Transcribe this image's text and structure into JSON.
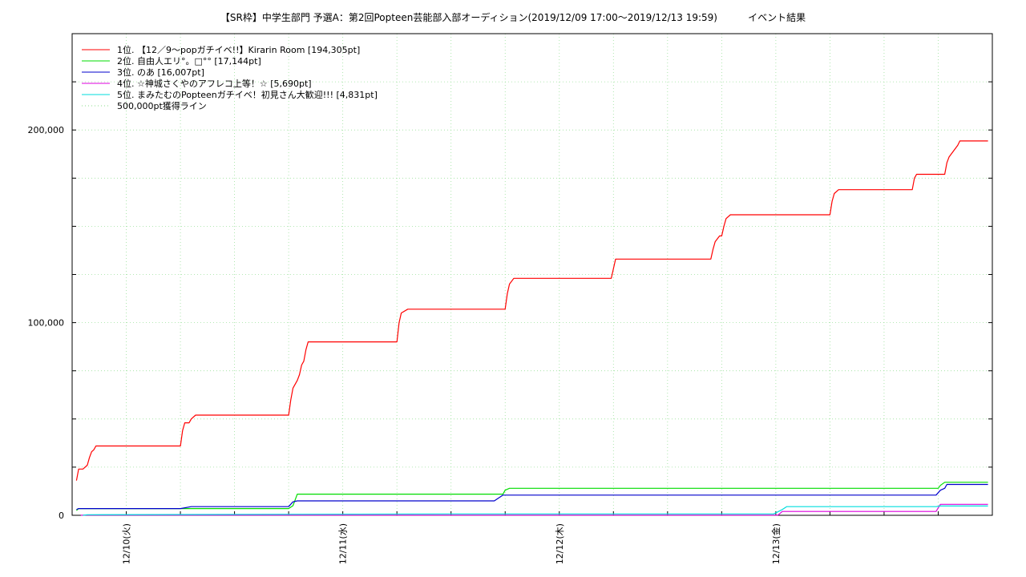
{
  "chart_data": {
    "type": "line",
    "title": "【SR枠】中学生部門 予選A：第2回Popteen芸能部入部オーディション(2019/12/09 17:00〜2019/12/13 19:59)          イベント結果",
    "xlabel": "",
    "ylabel": "",
    "ylim": [
      0,
      250000
    ],
    "y_ticks": [
      {
        "value": 0,
        "label": "0"
      },
      {
        "value": 100000,
        "label": "100,000"
      },
      {
        "value": 200000,
        "label": "200,000"
      }
    ],
    "x_ticks": [
      {
        "x": 1,
        "label": "12/10(火)"
      },
      {
        "x": 2,
        "label": "12/11(水)"
      },
      {
        "x": 3,
        "label": "12/12(木)"
      },
      {
        "x": 4,
        "label": "12/13(金)"
      }
    ],
    "xlim": [
      0.75,
      5.0
    ],
    "grid": true,
    "legend_position": "top-left",
    "series": [
      {
        "name": "1位. 【12／9〜popガチイベ!!】Kirarin Room [194,305pt]",
        "color": "#ff0000",
        "x": [
          0.77,
          0.78,
          0.8,
          0.82,
          0.83,
          0.84,
          0.85,
          0.86,
          0.87,
          1.25,
          1.26,
          1.27,
          1.29,
          1.3,
          1.32,
          1.75,
          1.76,
          1.77,
          1.79,
          1.8,
          1.81,
          1.82,
          1.83,
          1.84,
          2.25,
          2.26,
          2.27,
          2.3,
          2.75,
          2.76,
          2.77,
          2.79,
          3.24,
          3.25,
          3.26,
          3.29,
          3.7,
          3.71,
          3.72,
          3.74,
          3.75,
          3.76,
          3.77,
          3.79,
          4.25,
          4.26,
          4.27,
          4.29,
          4.63,
          4.64,
          4.65,
          4.78,
          4.79,
          4.8,
          4.82,
          4.84,
          4.85,
          4.87,
          4.98
        ],
        "y": [
          18000,
          24000,
          24000,
          26000,
          30000,
          33000,
          34000,
          36000,
          36000,
          36000,
          44000,
          48000,
          48000,
          50000,
          52000,
          52000,
          60000,
          66000,
          70000,
          73000,
          78000,
          80000,
          86000,
          90000,
          90000,
          100000,
          105000,
          107000,
          107000,
          115000,
          120000,
          123000,
          123000,
          128000,
          133000,
          133000,
          133000,
          138000,
          142000,
          145000,
          145000,
          150000,
          154000,
          156000,
          156000,
          163000,
          167000,
          169000,
          169000,
          175000,
          177000,
          177000,
          183000,
          186000,
          189000,
          192000,
          194305,
          194305,
          194305
        ]
      },
      {
        "name": "2位. 自由人エリ°。□°° [17,144pt]",
        "color": "#00dd00",
        "x": [
          0.77,
          0.78,
          0.8,
          1.75,
          1.77,
          1.78,
          1.79,
          1.8,
          2.74,
          2.75,
          2.77,
          4.75,
          4.76,
          4.78,
          4.98
        ],
        "y": [
          2500,
          3500,
          3500,
          3500,
          5000,
          8000,
          11000,
          11000,
          11000,
          13000,
          14000,
          14000,
          15500,
          17144,
          17144
        ]
      },
      {
        "name": "3位. のあ [16,007pt]",
        "color": "#0000cc",
        "x": [
          0.77,
          0.78,
          0.8,
          1.25,
          1.3,
          1.75,
          1.77,
          1.79,
          2.7,
          2.72,
          2.74,
          4.74,
          4.76,
          4.78,
          4.79,
          4.98
        ],
        "y": [
          3000,
          3500,
          3500,
          3500,
          4500,
          4500,
          7000,
          7500,
          7500,
          9000,
          10500,
          10500,
          13000,
          14000,
          16007,
          16007
        ]
      },
      {
        "name": "4位. ☆神城さくやのアフレコ上等！☆ [5,690pt]",
        "color": "#dd00dd",
        "x": [
          0.79,
          0.8,
          4.01,
          4.03,
          4.74,
          4.76,
          4.98
        ],
        "y": [
          0,
          100,
          100,
          2000,
          2000,
          5690,
          5690
        ]
      },
      {
        "name": "5位. まみたむのPopteenガチイベ！初見さん大歓迎!!! [4,831pt]",
        "color": "#00dddd",
        "x": [
          0.8,
          0.82,
          2.5,
          3.99,
          4.03,
          4.05,
          4.74,
          4.76,
          4.98
        ],
        "y": [
          0,
          300,
          700,
          700,
          3000,
          4500,
          4500,
          4831,
          4831
        ]
      },
      {
        "name": "500,000pt獲得ライン",
        "color": "#88dd88",
        "dashed": true,
        "x": [],
        "y": []
      }
    ]
  }
}
